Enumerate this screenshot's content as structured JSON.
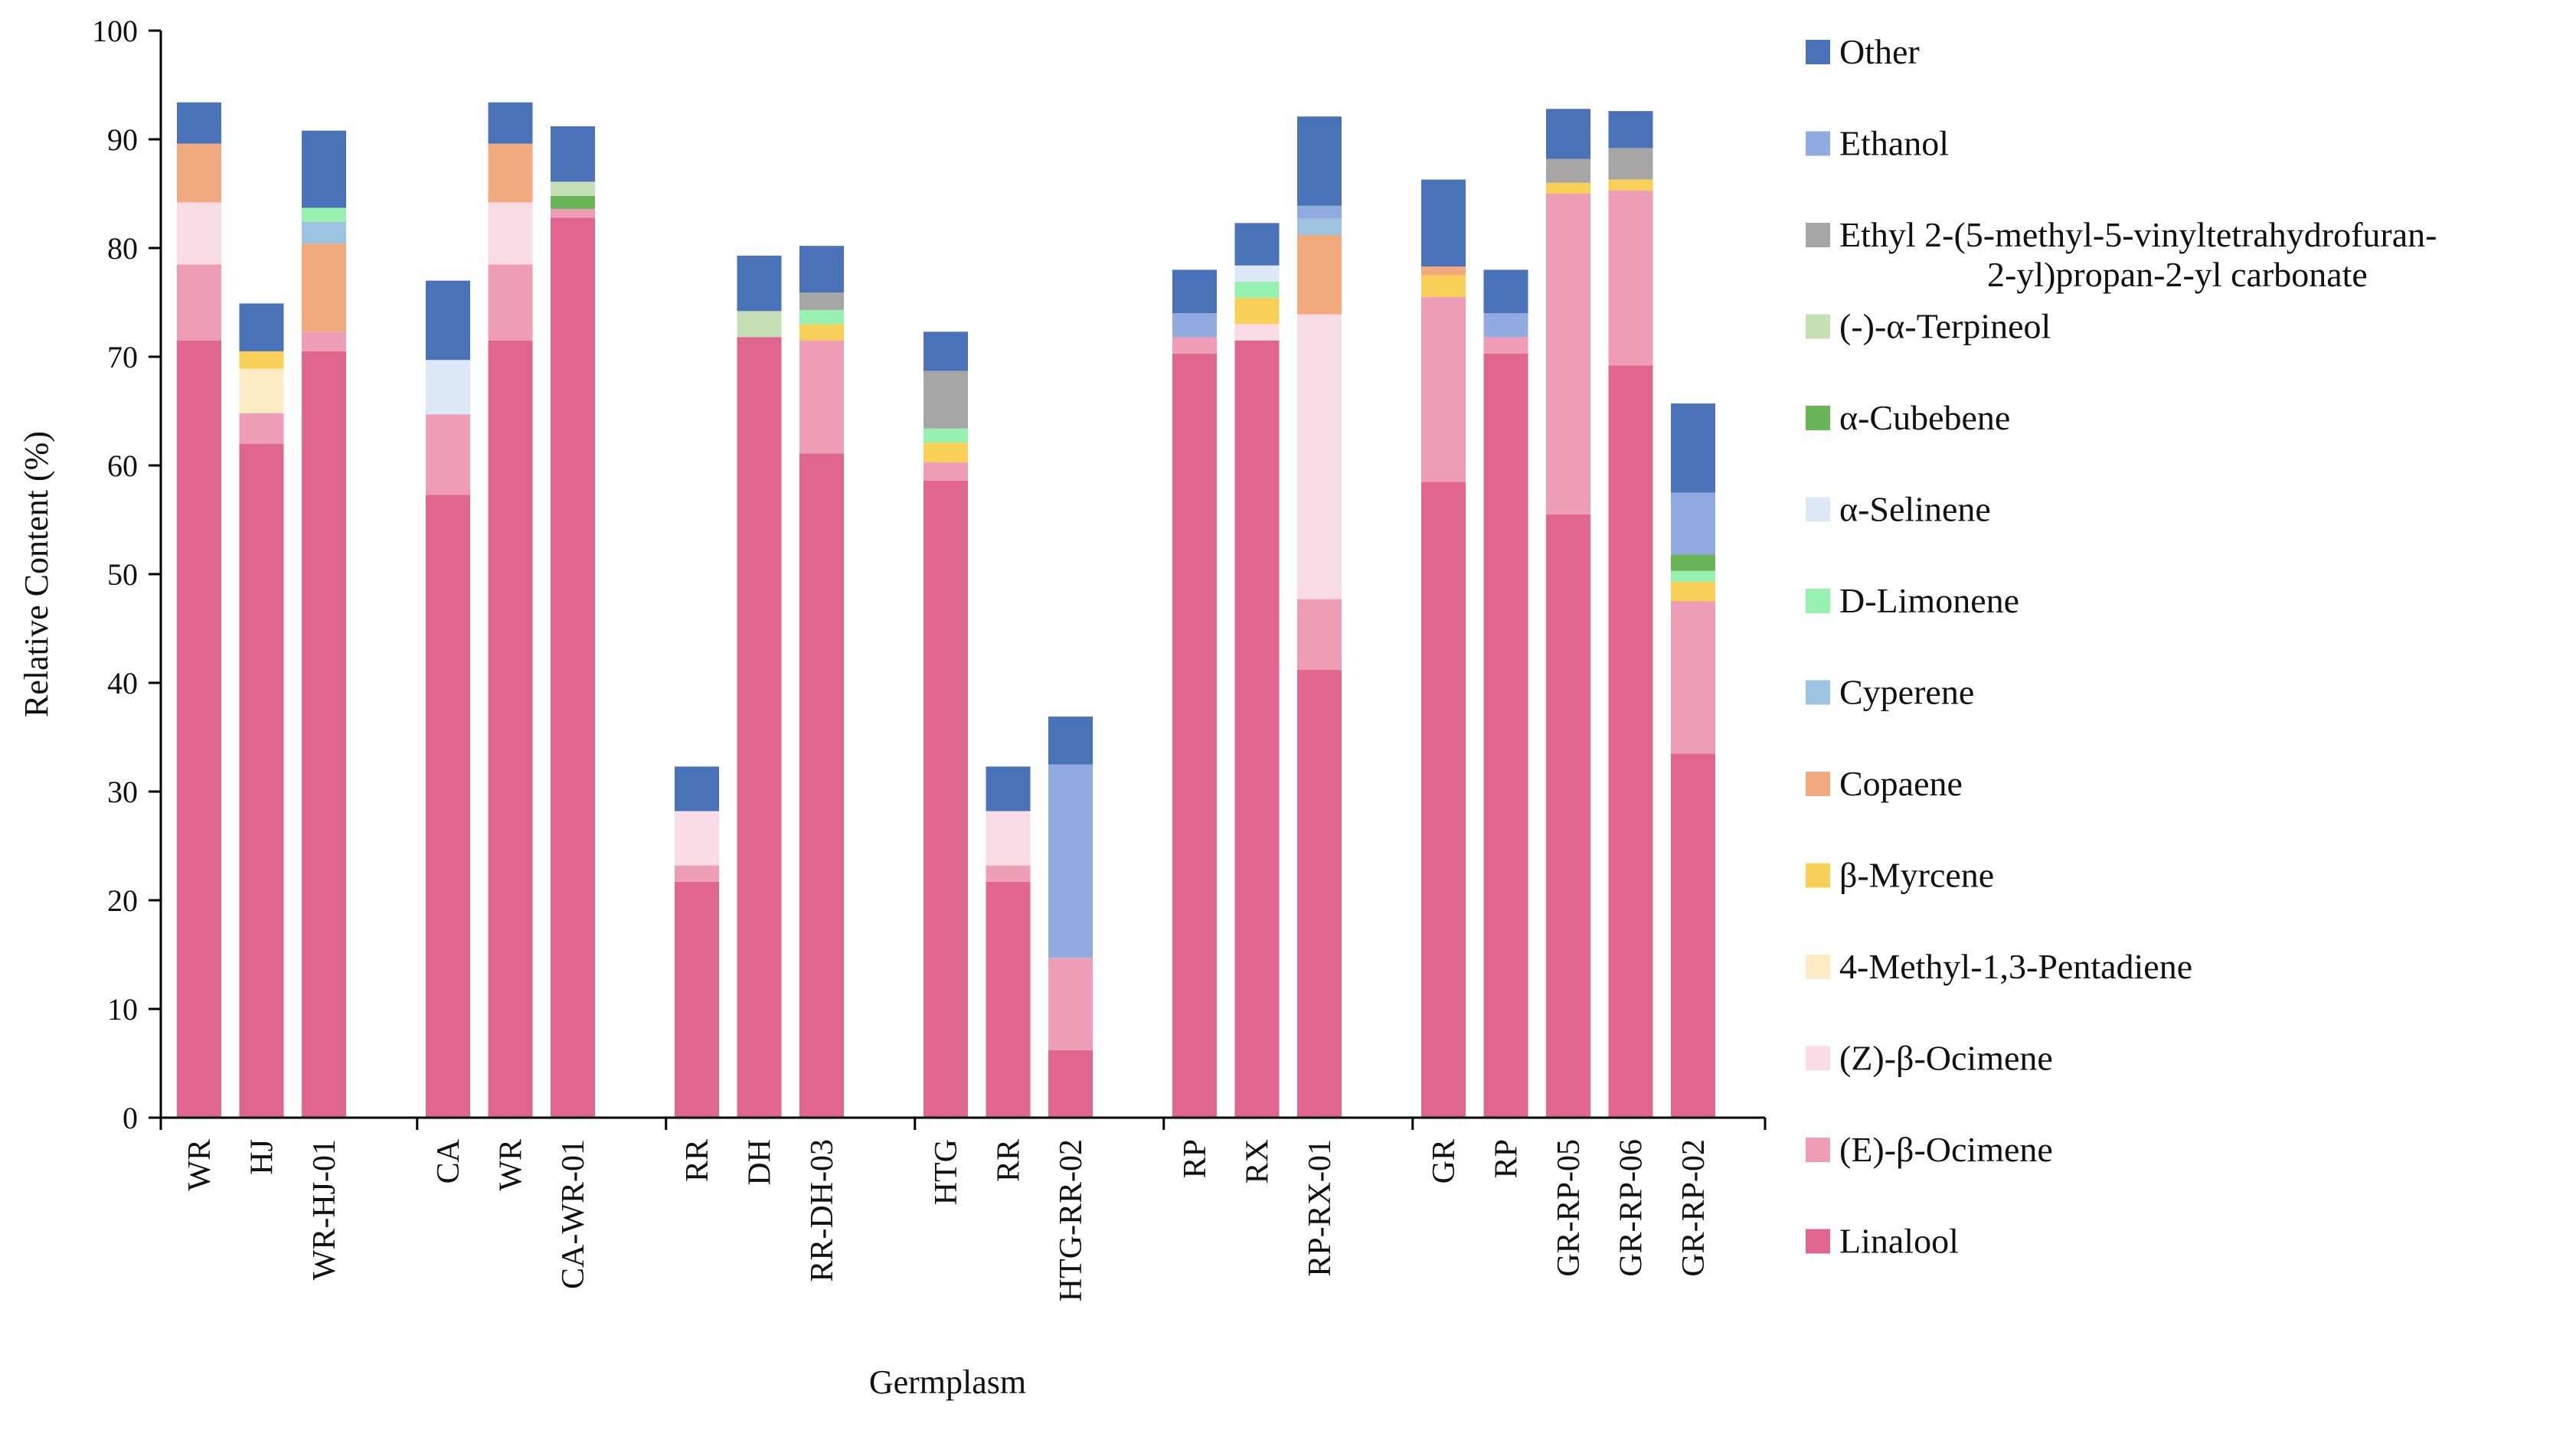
{
  "chart_data": {
    "type": "bar",
    "stacked": true,
    "title": "",
    "xlabel": "Germplasm",
    "ylabel": "Relative Content (%)",
    "ylim": [
      0,
      100
    ],
    "yticks": [
      0,
      10,
      20,
      30,
      40,
      50,
      60,
      70,
      80,
      90,
      100
    ],
    "groups": [
      {
        "categories": [
          "WR",
          "HJ",
          "WR-HJ-01"
        ]
      },
      {
        "categories": [
          "CA",
          "WR",
          "CA-WR-01"
        ]
      },
      {
        "categories": [
          "RR",
          "DH",
          "RR-DH-03"
        ]
      },
      {
        "categories": [
          "HTG",
          "RR",
          "HTG-RR-02"
        ]
      },
      {
        "categories": [
          "RP",
          "RX",
          "RP-RX-01"
        ]
      },
      {
        "categories": [
          "GR",
          "RP",
          "GR-RP-05",
          "GR-RP-06",
          "GR-RP-02"
        ]
      }
    ],
    "categories": [
      "WR",
      "HJ",
      "WR-HJ-01",
      "CA",
      "WR",
      "CA-WR-01",
      "RR",
      "DH",
      "RR-DH-03",
      "HTG",
      "RR",
      "HTG-RR-02",
      "RP",
      "RX",
      "RP-RX-01",
      "GR",
      "RP",
      "GR-RP-05",
      "GR-RP-06",
      "GR-RP-02"
    ],
    "series": [
      {
        "name": "Linalool",
        "color": "#E06690",
        "values": [
          71.5,
          62.0,
          70.5,
          57.3,
          71.5,
          82.8,
          21.7,
          71.8,
          61.1,
          58.6,
          21.7,
          6.2,
          70.3,
          71.5,
          41.2,
          58.5,
          70.3,
          55.5,
          69.2,
          33.5
        ]
      },
      {
        "name": "(E)-β-Ocimene",
        "color": "#EE9DB7",
        "values": [
          7.0,
          2.8,
          1.8,
          7.4,
          7.0,
          0.8,
          1.5,
          0,
          10.4,
          1.7,
          1.5,
          8.5,
          1.5,
          0,
          6.5,
          17.0,
          1.5,
          29.5,
          16.1,
          14.0
        ]
      },
      {
        "name": "(Z)-β-Ocimene",
        "color": "#FADCE6",
        "values": [
          5.7,
          0,
          0,
          0,
          5.7,
          0,
          5.0,
          0,
          0,
          0,
          5.0,
          0,
          0,
          1.5,
          26.2,
          0,
          0,
          0,
          0,
          0
        ]
      },
      {
        "name": "4-Methyl-1,3-Pentadiene",
        "color": "#FDEBC6",
        "values": [
          0,
          4.1,
          0,
          0,
          0,
          0,
          0,
          0,
          0,
          0,
          0,
          0,
          0,
          0,
          0,
          0,
          0,
          0,
          0,
          0
        ]
      },
      {
        "name": "β-Myrcene",
        "color": "#F9D057",
        "values": [
          0,
          1.6,
          0,
          0,
          0,
          0,
          0,
          0,
          1.5,
          1.8,
          0,
          0,
          0,
          2.4,
          0,
          2.0,
          0,
          1.0,
          1.0,
          1.8
        ]
      },
      {
        "name": "Copaene",
        "color": "#F2A97E",
        "values": [
          5.4,
          0,
          8.1,
          0,
          5.4,
          0,
          0,
          0,
          0,
          0,
          0,
          0,
          0,
          0,
          7.3,
          0.8,
          0,
          0,
          0,
          0
        ]
      },
      {
        "name": "Cyperene",
        "color": "#9DC3E0",
        "values": [
          0,
          0,
          2.0,
          0,
          0,
          0,
          0,
          0,
          0,
          0,
          0,
          0,
          0,
          0,
          1.5,
          0,
          0,
          0,
          0,
          0
        ]
      },
      {
        "name": "D-Limonene",
        "color": "#96F0B0",
        "values": [
          0,
          0,
          1.3,
          0,
          0,
          0,
          0,
          0,
          1.3,
          1.3,
          0,
          0,
          0,
          1.5,
          0,
          0,
          0,
          0,
          0,
          1.0
        ]
      },
      {
        "name": "α-Selinene",
        "color": "#DCE8F6",
        "values": [
          0,
          0,
          0,
          5.0,
          0,
          0,
          0,
          0,
          0,
          0,
          0,
          0,
          0,
          1.5,
          0,
          0,
          0,
          0,
          0,
          0
        ]
      },
      {
        "name": "α-Cubebene",
        "color": "#6AB557",
        "values": [
          0,
          0,
          0,
          0,
          0,
          1.2,
          0,
          0,
          0,
          0,
          0,
          0,
          0,
          0,
          0,
          0,
          0,
          0,
          0,
          1.5
        ]
      },
      {
        "name": "(-)-α-Terpineol",
        "color": "#C5E0B4",
        "values": [
          0,
          0,
          0,
          0,
          0,
          1.3,
          0,
          2.4,
          0,
          0,
          0,
          0,
          0,
          0,
          0,
          0,
          0,
          0,
          0,
          0
        ]
      },
      {
        "name": "Ethyl 2-(5-methyl-5-vinyltetrahydrofuran-2-yl)propan-2-yl carbonate",
        "color": "#A6A6A6",
        "values": [
          0,
          0,
          0,
          0,
          0,
          0,
          0,
          0,
          1.6,
          5.3,
          0,
          0,
          0,
          0,
          0,
          0,
          0,
          2.2,
          2.9,
          0
        ]
      },
      {
        "name": "Ethanol",
        "color": "#91ABE0",
        "values": [
          0,
          0,
          0,
          0,
          0,
          0,
          0,
          0,
          0,
          0,
          0,
          17.8,
          2.2,
          0,
          1.2,
          0,
          2.2,
          0,
          0,
          5.7
        ]
      },
      {
        "name": "Other",
        "color": "#4A72B8",
        "values": [
          3.8,
          4.4,
          7.1,
          7.3,
          3.8,
          5.1,
          4.1,
          5.1,
          4.3,
          3.6,
          4.1,
          4.4,
          4.0,
          3.9,
          8.2,
          8.0,
          4.0,
          4.6,
          3.4,
          8.2
        ]
      }
    ],
    "legend_position": "right"
  }
}
